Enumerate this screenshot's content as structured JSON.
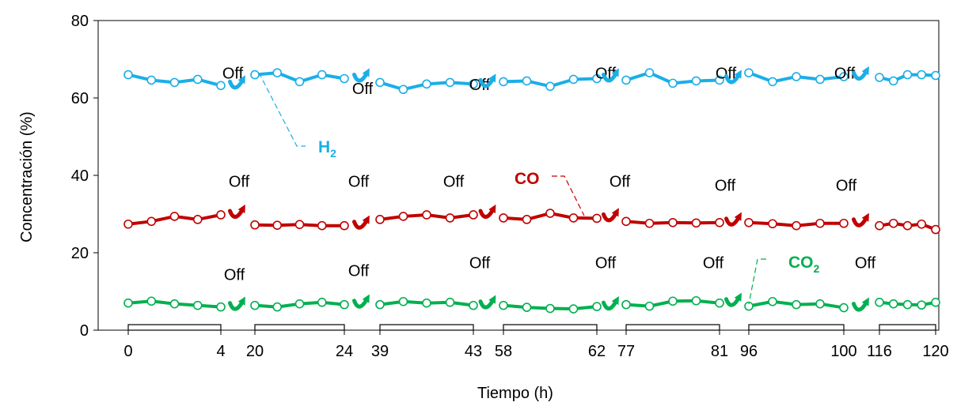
{
  "chart_data": {
    "type": "line",
    "xlabel": "Tiempo (h)",
    "ylabel": "Concentración (%)",
    "ylim": [
      0,
      80
    ],
    "yticks": [
      "0",
      "20",
      "40",
      "60",
      "80"
    ],
    "grid": false,
    "off_label": "Off",
    "segments": [
      {
        "start": "0",
        "end": "4"
      },
      {
        "start": "20",
        "end": "24"
      },
      {
        "start": "39",
        "end": "43"
      },
      {
        "start": "58",
        "end": "62"
      },
      {
        "start": "77",
        "end": "81"
      },
      {
        "start": "96",
        "end": "100"
      },
      {
        "start": "116",
        "end": "120"
      }
    ],
    "series": [
      {
        "name": "H",
        "subscript": "2",
        "color": "#1BAEE8",
        "values": [
          [
            66.0,
            64.6,
            64.0,
            64.8,
            63.2
          ],
          [
            66.0,
            66.5,
            64.2,
            66.0,
            65.0
          ],
          [
            64.0,
            62.2,
            63.6,
            64.0,
            63.6
          ],
          [
            64.2,
            64.4,
            63.0,
            64.8,
            65.0
          ],
          [
            64.6,
            66.5,
            63.8,
            64.4,
            64.6
          ],
          [
            66.5,
            64.2,
            65.5,
            64.8,
            65.5
          ],
          [
            65.3,
            64.4,
            66.0,
            66.0,
            65.8
          ]
        ]
      },
      {
        "name": "CO",
        "subscript": "",
        "color": "#C00000",
        "values": [
          [
            27.4,
            28.1,
            29.4,
            28.6,
            29.8
          ],
          [
            27.2,
            27.1,
            27.3,
            27.0,
            27.0
          ],
          [
            28.6,
            29.4,
            29.8,
            29.0,
            29.8
          ],
          [
            29.0,
            28.6,
            30.2,
            29.0,
            28.9
          ],
          [
            28.1,
            27.6,
            27.8,
            27.7,
            27.8
          ],
          [
            27.8,
            27.5,
            27.0,
            27.6,
            27.6
          ],
          [
            27.0,
            27.6,
            27.0,
            27.4,
            26.0
          ]
        ]
      },
      {
        "name": "CO",
        "subscript": "2",
        "color": "#00B050",
        "values": [
          [
            7.0,
            7.5,
            6.8,
            6.4,
            6.0
          ],
          [
            6.4,
            6.0,
            6.8,
            7.2,
            6.6
          ],
          [
            6.6,
            7.4,
            7.0,
            7.2,
            6.4
          ],
          [
            6.4,
            5.9,
            5.6,
            5.5,
            6.1
          ],
          [
            6.6,
            6.2,
            7.5,
            7.6,
            7.0
          ],
          [
            6.2,
            7.4,
            6.6,
            6.8,
            5.8
          ],
          [
            7.2,
            6.8,
            6.6,
            6.5,
            7.2
          ]
        ]
      }
    ],
    "off_rows": [
      [
        65,
        61,
        62,
        65,
        65,
        65,
        61
      ],
      [
        37,
        37,
        37,
        37,
        36,
        36,
        36
      ],
      [
        13,
        14,
        16,
        16,
        16,
        16,
        14
      ]
    ]
  }
}
